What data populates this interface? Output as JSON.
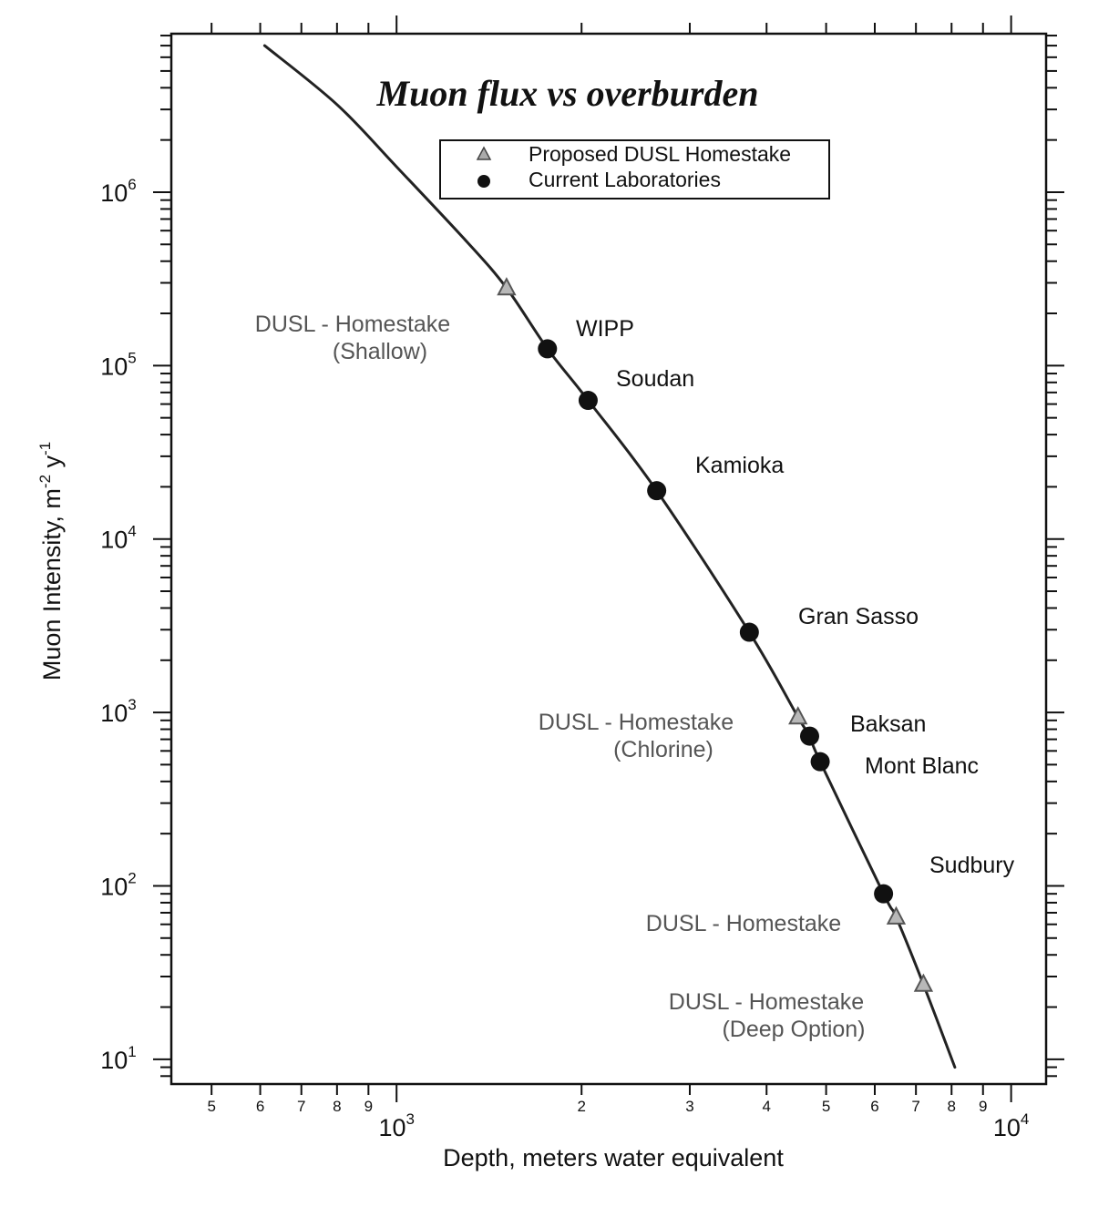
{
  "chart_data": {
    "type": "scatter",
    "title": "Muon flux vs overburden",
    "xlabel": "Depth, meters water equivalent",
    "ylabel_main": "Muon Intensity, m",
    "ylabel_exp1": "-2",
    "ylabel_mid": " y",
    "ylabel_exp2": "-1",
    "x_scale": "log",
    "y_scale": "log",
    "xlim": [
      430,
      11400
    ],
    "ylim": [
      7.2,
      8200000
    ],
    "x_major_ticks": [
      {
        "value": 1000,
        "base": "10",
        "exp": "3"
      },
      {
        "value": 10000,
        "base": "10",
        "exp": "4"
      }
    ],
    "x_minor_labels": [
      {
        "value": 500,
        "label": "5"
      },
      {
        "value": 600,
        "label": "6"
      },
      {
        "value": 700,
        "label": "7"
      },
      {
        "value": 800,
        "label": "8"
      },
      {
        "value": 900,
        "label": "9"
      },
      {
        "value": 2000,
        "label": "2"
      },
      {
        "value": 3000,
        "label": "3"
      },
      {
        "value": 4000,
        "label": "4"
      },
      {
        "value": 5000,
        "label": "5"
      },
      {
        "value": 6000,
        "label": "6"
      },
      {
        "value": 7000,
        "label": "7"
      },
      {
        "value": 8000,
        "label": "8"
      },
      {
        "value": 9000,
        "label": "9"
      }
    ],
    "y_major_ticks": [
      {
        "value": 10,
        "base": "10",
        "exp": "1"
      },
      {
        "value": 100,
        "base": "10",
        "exp": "2"
      },
      {
        "value": 1000,
        "base": "10",
        "exp": "3"
      },
      {
        "value": 10000,
        "base": "10",
        "exp": "4"
      },
      {
        "value": 100000,
        "base": "10",
        "exp": "5"
      },
      {
        "value": 1000000,
        "base": "10",
        "exp": "6"
      }
    ],
    "curve": {
      "x": [
        610,
        800,
        1000,
        1300,
        1510,
        1760,
        2050,
        2650,
        3750,
        4500,
        4700,
        4890,
        6200,
        6500,
        7200,
        8100
      ],
      "y": [
        7000000,
        3200000,
        1400000,
        520000,
        280000,
        125000,
        63000,
        19000,
        2900,
        940,
        730,
        520,
        90,
        66,
        27,
        9
      ]
    },
    "legend": {
      "position": "top-center",
      "entries": [
        {
          "label": "Proposed DUSL Homestake",
          "marker": "triangle"
        },
        {
          "label": "Current Laboratories",
          "marker": "circle"
        }
      ]
    },
    "series": [
      {
        "name": "Current Laboratories",
        "marker": "circle",
        "color": "#111111",
        "points": [
          {
            "label": "WIPP",
            "x": 1760,
            "y": 125000
          },
          {
            "label": "Soudan",
            "x": 2050,
            "y": 63000
          },
          {
            "label": "Kamioka",
            "x": 2650,
            "y": 19000
          },
          {
            "label": "Gran Sasso",
            "x": 3750,
            "y": 2900
          },
          {
            "label": "Baksan",
            "x": 4700,
            "y": 730
          },
          {
            "label": "Mont Blanc",
            "x": 4890,
            "y": 520
          },
          {
            "label": "Sudbury",
            "x": 6200,
            "y": 90
          }
        ]
      },
      {
        "name": "Proposed DUSL Homestake",
        "marker": "triangle",
        "color": "#555555",
        "points": [
          {
            "label": "DUSL - Homestake (Shallow)",
            "x": 1510,
            "y": 280000
          },
          {
            "label": "DUSL - Homestake (Chlorine)",
            "x": 4500,
            "y": 940
          },
          {
            "label": "DUSL - Homestake",
            "x": 6500,
            "y": 66
          },
          {
            "label": "DUSL - Homestake (Deep Option)",
            "x": 7200,
            "y": 27
          }
        ]
      }
    ],
    "annotations": [
      {
        "lines": [
          "WIPP"
        ],
        "color": "#111111"
      },
      {
        "lines": [
          "Soudan"
        ],
        "color": "#111111"
      },
      {
        "lines": [
          "Kamioka"
        ],
        "color": "#111111"
      },
      {
        "lines": [
          "Gran Sasso"
        ],
        "color": "#111111"
      },
      {
        "lines": [
          "Baksan"
        ],
        "color": "#111111"
      },
      {
        "lines": [
          "Mont Blanc"
        ],
        "color": "#111111"
      },
      {
        "lines": [
          "Sudbury"
        ],
        "color": "#111111"
      },
      {
        "lines": [
          "DUSL - Homestake",
          "(Shallow)"
        ],
        "color": "#555555"
      },
      {
        "lines": [
          "DUSL - Homestake",
          "(Chlorine)"
        ],
        "color": "#555555"
      },
      {
        "lines": [
          "DUSL - Homestake"
        ],
        "color": "#555555"
      },
      {
        "lines": [
          "DUSL - Homestake",
          "(Deep Option)"
        ],
        "color": "#555555"
      }
    ]
  }
}
